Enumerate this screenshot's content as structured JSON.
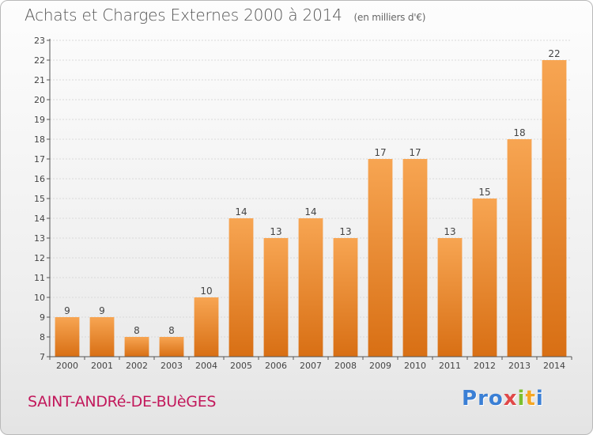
{
  "header": {
    "title": "Achats et Charges Externes 2000 à 2014",
    "unit": "(en milliers d'€)"
  },
  "footer": {
    "commune": "SAINT-ANDRé-DE-BUèGES",
    "logo_letters": [
      {
        "ch": "P",
        "color": "#3a7fd5"
      },
      {
        "ch": "r",
        "color": "#3a7fd5"
      },
      {
        "ch": "o",
        "color": "#3a7fd5"
      },
      {
        "ch": "x",
        "color": "#e04848"
      },
      {
        "ch": "i",
        "color": "#7cbf2f"
      },
      {
        "ch": "t",
        "color": "#f5a623"
      },
      {
        "ch": "i",
        "color": "#3a7fd5"
      }
    ]
  },
  "colors": {
    "bar_light": "#f7a552",
    "bar_dark": "#d86f14",
    "axis": "#555555",
    "grid": "#d9d9d9"
  },
  "chart_data": {
    "type": "bar",
    "title": "Achats et Charges Externes 2000 à 2014",
    "categories": [
      "2000",
      "2001",
      "2002",
      "2003",
      "2004",
      "2005",
      "2006",
      "2007",
      "2008",
      "2009",
      "2010",
      "2011",
      "2012",
      "2013",
      "2014"
    ],
    "values": [
      9,
      9,
      8,
      8,
      10,
      14,
      13,
      14,
      13,
      17,
      17,
      13,
      15,
      18,
      22
    ],
    "ylim": [
      7,
      23
    ],
    "yticks": [
      7,
      8,
      9,
      10,
      11,
      12,
      13,
      14,
      15,
      16,
      17,
      18,
      19,
      20,
      21,
      22,
      23
    ],
    "grid": true,
    "data_labels": true
  }
}
